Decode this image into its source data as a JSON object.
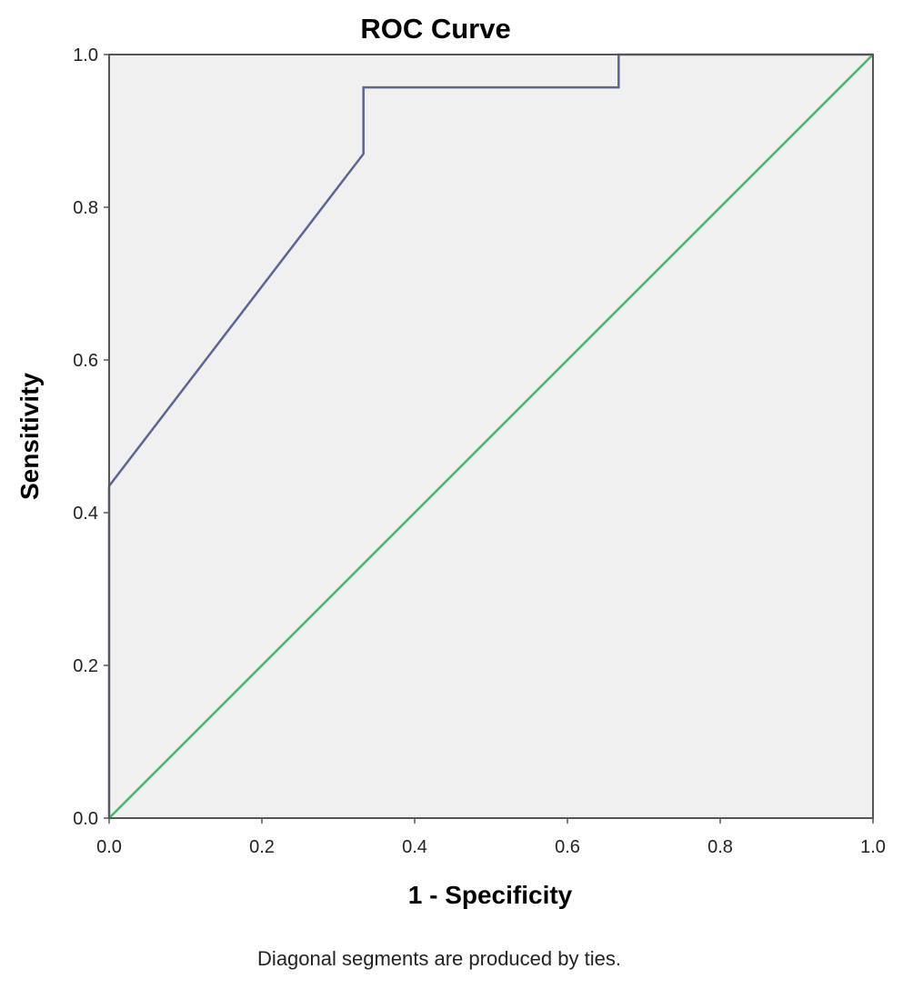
{
  "chart_data": {
    "type": "line",
    "title": "ROC Curve",
    "xlabel": "1 - Specificity",
    "ylabel": "Sensitivity",
    "xlim": [
      0.0,
      1.0
    ],
    "ylim": [
      0.0,
      1.0
    ],
    "x_ticks": [
      "0.0",
      "0.2",
      "0.4",
      "0.6",
      "0.8",
      "1.0"
    ],
    "y_ticks": [
      "0.0",
      "0.2",
      "0.4",
      "0.6",
      "0.8",
      "1.0"
    ],
    "grid": false,
    "legend": "none",
    "footnote": "Diagonal segments are produced by ties.",
    "series": [
      {
        "color": "#5b6496",
        "x": [
          0.0,
          0.0,
          0.333,
          0.333,
          0.667,
          0.667,
          1.0
        ],
        "y": [
          0.0,
          0.435,
          0.87,
          0.957,
          0.957,
          1.0,
          1.0
        ]
      },
      {
        "color": "#4db36b",
        "x": [
          0.0,
          1.0
        ],
        "y": [
          0.0,
          1.0
        ]
      }
    ]
  },
  "colors": {
    "plot_background": "#f0f0f0",
    "frame": "#555555"
  }
}
